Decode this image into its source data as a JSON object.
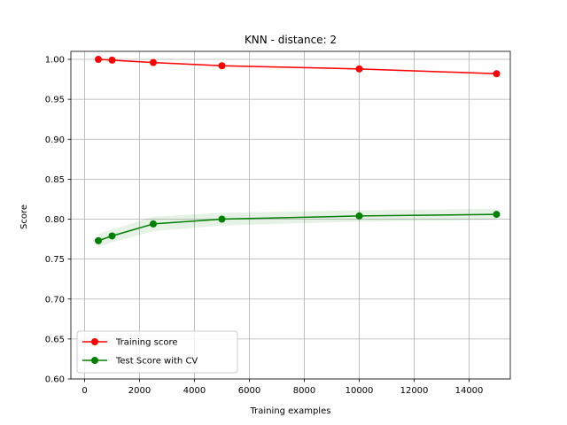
{
  "chart_data": {
    "type": "line",
    "title": "KNN - distance: 2",
    "xlabel": "Training examples",
    "ylabel": "Score",
    "xlim": [
      -500,
      15500
    ],
    "ylim": [
      0.6,
      1.01
    ],
    "xticks": [
      0,
      2000,
      4000,
      6000,
      8000,
      10000,
      12000,
      14000
    ],
    "xtick_labels": [
      "0",
      "2000",
      "4000",
      "6000",
      "8000",
      "10000",
      "12000",
      "14000"
    ],
    "yticks": [
      0.6,
      0.65,
      0.7,
      0.75,
      0.8,
      0.85,
      0.9,
      0.95,
      1.0
    ],
    "ytick_labels": [
      "0.60",
      "0.65",
      "0.70",
      "0.75",
      "0.80",
      "0.85",
      "0.90",
      "0.95",
      "1.00"
    ],
    "grid": true,
    "legend_position": "bottom-left",
    "x": [
      500,
      1000,
      2500,
      5000,
      10000,
      15000
    ],
    "series": [
      {
        "name": "Training score",
        "color": "#ff0000",
        "values": [
          1.0,
          0.999,
          0.996,
          0.992,
          0.988,
          0.982
        ],
        "band": [
          0.001,
          0.001,
          0.001,
          0.001,
          0.001,
          0.001
        ]
      },
      {
        "name": "Test Score with CV",
        "color": "#008000",
        "values": [
          0.773,
          0.779,
          0.794,
          0.8,
          0.804,
          0.806
        ],
        "band": [
          0.008,
          0.008,
          0.009,
          0.008,
          0.007,
          0.007
        ]
      }
    ]
  }
}
